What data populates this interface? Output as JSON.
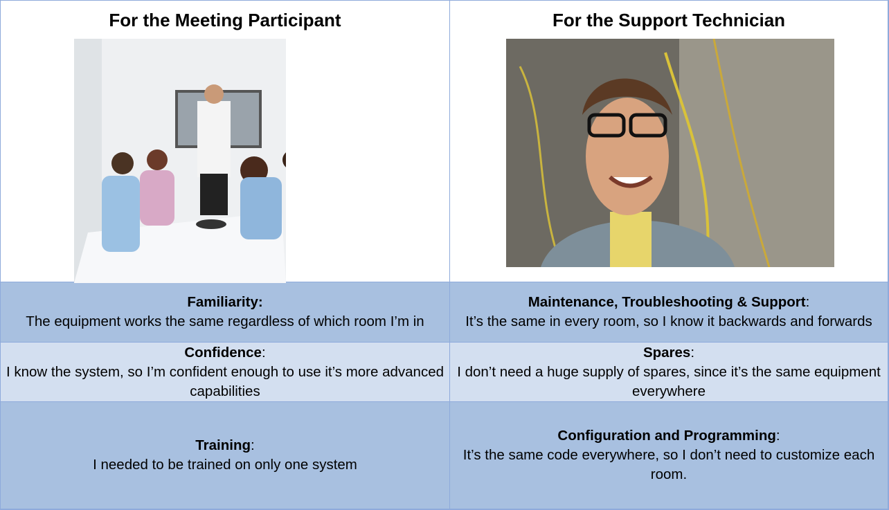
{
  "header": {
    "left": "For the Meeting Participant",
    "right": "For the Support Technician"
  },
  "rows": [
    {
      "left": {
        "label": "Familiarity:",
        "text": "The equipment works the same regardless of which room I’m in"
      },
      "right": {
        "label": "Maintenance, Troubleshooting & Support",
        "punct": ":",
        "text": "It’s the same in every room, so I know it backwards and forwards"
      }
    },
    {
      "left": {
        "label": "Confidence",
        "punct": ":",
        "text": "I know the system, so I’m confident enough to use it’s more advanced capabilities"
      },
      "right": {
        "label": "Spares",
        "punct": ":",
        "text": "I don’t need a huge supply of spares, since it’s the same equipment everywhere"
      }
    },
    {
      "left": {
        "label": "Training",
        "punct": ":",
        "text": "I needed to be trained on only one system"
      },
      "right": {
        "label": "Configuration and Programming",
        "punct": ":",
        "text": "It’s the same code everywhere, so I don’t need to customize each room."
      }
    }
  ]
}
